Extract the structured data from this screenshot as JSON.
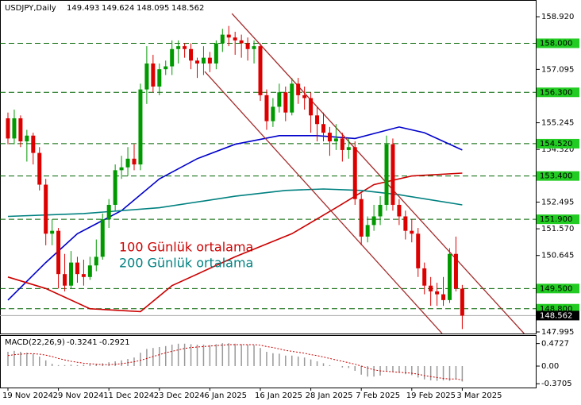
{
  "chart_data": {
    "type": "candlestick",
    "title": "USDJPY,Daily",
    "categories": [
      "19 Nov 2024",
      null,
      null,
      null,
      null,
      null,
      null,
      null,
      "29 Nov 2024",
      null,
      null,
      null,
      null,
      null,
      null,
      null,
      "11 Dec 2024",
      null,
      null,
      null,
      null,
      null,
      null,
      null,
      "23 Dec 2024",
      null,
      null,
      null,
      null,
      null,
      null,
      null,
      "6 Jan 2025",
      null,
      null,
      null,
      null,
      null,
      null,
      null,
      "16 Jan 2025",
      null,
      null,
      null,
      null,
      null,
      null,
      null,
      "28 Jan 2025",
      null,
      null,
      null,
      null,
      null,
      null,
      null,
      "7 Feb 2025",
      null,
      null,
      null,
      null,
      null,
      null,
      null,
      "19 Feb 2025",
      null,
      null,
      null,
      null,
      null,
      null,
      null,
      "3 Mar 2025"
    ],
    "candles": [
      [
        155.4,
        155.6,
        154.5,
        154.7
      ],
      [
        154.7,
        155.7,
        154.5,
        155.4
      ],
      [
        155.4,
        155.5,
        154.4,
        154.6
      ],
      [
        154.6,
        155.0,
        153.9,
        154.8
      ],
      [
        154.8,
        154.9,
        153.8,
        154.2
      ],
      [
        154.2,
        154.4,
        152.9,
        153.1
      ],
      [
        153.1,
        153.3,
        151.0,
        151.4
      ],
      [
        151.4,
        151.9,
        151.0,
        151.5
      ],
      [
        151.5,
        151.6,
        149.5,
        150.0
      ],
      [
        150.0,
        150.7,
        149.4,
        149.6
      ],
      [
        149.6,
        150.8,
        149.5,
        150.4
      ],
      [
        150.4,
        150.6,
        149.7,
        150.0
      ],
      [
        150.0,
        150.5,
        149.6,
        149.9
      ],
      [
        149.9,
        150.6,
        149.8,
        150.3
      ],
      [
        150.3,
        151.2,
        150.1,
        150.6
      ],
      [
        150.6,
        152.1,
        150.5,
        151.9
      ],
      [
        151.9,
        152.6,
        151.6,
        152.4
      ],
      [
        152.4,
        153.8,
        152.2,
        153.6
      ],
      [
        153.6,
        154.1,
        153.3,
        153.7
      ],
      [
        153.7,
        154.4,
        153.4,
        154.0
      ],
      [
        154.0,
        154.5,
        153.6,
        153.8
      ],
      [
        153.8,
        156.6,
        153.6,
        156.4
      ],
      [
        156.4,
        157.9,
        155.9,
        157.3
      ],
      [
        157.3,
        157.6,
        156.3,
        156.5
      ],
      [
        156.5,
        157.3,
        156.2,
        157.1
      ],
      [
        157.1,
        157.4,
        156.9,
        157.2
      ],
      [
        157.2,
        158.1,
        156.9,
        157.8
      ],
      [
        157.8,
        158.1,
        157.3,
        157.9
      ],
      [
        157.9,
        158.0,
        157.5,
        157.8
      ],
      [
        157.8,
        158.0,
        157.1,
        157.4
      ],
      [
        157.4,
        157.5,
        156.8,
        157.3
      ],
      [
        157.3,
        157.9,
        156.9,
        157.5
      ],
      [
        157.5,
        157.7,
        157.0,
        157.3
      ],
      [
        157.3,
        158.1,
        157.1,
        158.0
      ],
      [
        158.0,
        158.5,
        157.7,
        158.3
      ],
      [
        158.3,
        158.6,
        157.9,
        158.2
      ],
      [
        158.2,
        158.4,
        157.6,
        158.1
      ],
      [
        158.1,
        158.3,
        157.5,
        158.0
      ],
      [
        158.0,
        158.2,
        157.4,
        157.8
      ],
      [
        157.8,
        158.1,
        157.3,
        157.9
      ],
      [
        157.9,
        158.0,
        156.0,
        156.2
      ],
      [
        156.2,
        156.4,
        155.0,
        155.3
      ],
      [
        155.3,
        156.1,
        155.1,
        155.8
      ],
      [
        155.8,
        156.6,
        155.6,
        156.3
      ],
      [
        156.3,
        156.5,
        155.3,
        155.6
      ],
      [
        155.6,
        156.8,
        155.5,
        156.6
      ],
      [
        156.6,
        156.8,
        155.9,
        156.2
      ],
      [
        156.2,
        156.5,
        155.7,
        156.1
      ],
      [
        156.1,
        156.3,
        154.9,
        155.5
      ],
      [
        155.5,
        155.8,
        154.6,
        155.2
      ],
      [
        155.2,
        155.6,
        154.6,
        154.9
      ],
      [
        154.9,
        155.1,
        154.1,
        154.6
      ],
      [
        154.6,
        155.2,
        154.3,
        154.7
      ],
      [
        154.7,
        154.9,
        153.9,
        154.3
      ],
      [
        154.3,
        154.7,
        154.0,
        154.4
      ],
      [
        154.4,
        154.6,
        152.4,
        152.6
      ],
      [
        152.6,
        152.8,
        151.0,
        151.3
      ],
      [
        151.3,
        152.0,
        151.1,
        151.7
      ],
      [
        151.7,
        152.4,
        151.5,
        152.0
      ],
      [
        152.0,
        152.7,
        151.7,
        152.4
      ],
      [
        152.4,
        154.8,
        152.2,
        154.5
      ],
      [
        154.5,
        154.7,
        152.2,
        152.4
      ],
      [
        152.4,
        152.6,
        151.7,
        152.0
      ],
      [
        152.0,
        152.2,
        151.2,
        151.5
      ],
      [
        151.5,
        151.9,
        151.1,
        151.4
      ],
      [
        151.4,
        151.6,
        149.9,
        150.2
      ],
      [
        150.2,
        150.4,
        149.3,
        149.6
      ],
      [
        149.6,
        149.9,
        148.9,
        149.4
      ],
      [
        149.4,
        149.7,
        148.9,
        149.3
      ],
      [
        149.3,
        149.9,
        148.9,
        149.1
      ],
      [
        149.1,
        150.9,
        149.0,
        150.7
      ],
      [
        150.7,
        151.3,
        149.4,
        149.5
      ],
      [
        149.493,
        149.624,
        148.095,
        148.562
      ]
    ],
    "up_color": "#009900",
    "down_color": "#dd0000",
    "ylim": [
      147.94,
      159.5
    ],
    "yticks": [
      {
        "value": 158.92,
        "label": "158.920"
      },
      157.095,
      155.245,
      {
        "value": 154.32,
        "label": "154.320"
      },
      152.495,
      {
        "value": 151.57,
        "label": "151.570"
      },
      150.645,
      147.995
    ],
    "levels": [
      {
        "value": 158,
        "label": "158.000"
      },
      {
        "value": 156.3,
        "label": "156.300"
      },
      {
        "value": 154.52,
        "label": "154.520"
      },
      {
        "value": 153.4,
        "label": "153.400"
      },
      {
        "value": 151.9,
        "label": "151.900"
      },
      {
        "value": 149.5,
        "label": "149.500"
      },
      {
        "value": 148.8,
        "label": "148.800"
      }
    ],
    "level_color": "#006400",
    "level_box_color": "#22cc22",
    "last_price": 148.562,
    "series": [
      {
        "color": "#0000cc",
        "x": [
          0,
          6,
          11,
          18,
          24,
          30,
          36,
          43,
          49,
          55,
          62,
          66,
          72
        ],
        "values": [
          149.1,
          150.4,
          151.4,
          152.2,
          153.3,
          154.0,
          154.5,
          154.8,
          154.8,
          154.7,
          155.1,
          154.9,
          154.3
        ]
      },
      {
        "name": "100 Günlük ortalama",
        "color": "#cc0000",
        "x": [
          0,
          6,
          13,
          21,
          26,
          36,
          45,
          52,
          58,
          64,
          72
        ],
        "values": [
          149.9,
          149.5,
          148.8,
          148.7,
          149.6,
          150.6,
          151.4,
          152.3,
          153.1,
          153.4,
          153.5
        ]
      },
      {
        "name": "200 Günlük ortalama",
        "color": "#008080",
        "x": [
          0,
          12,
          24,
          36,
          44,
          50,
          56,
          62,
          72
        ],
        "values": [
          152.0,
          152.1,
          152.3,
          152.7,
          152.9,
          152.95,
          152.9,
          152.75,
          152.4
        ]
      }
    ],
    "channel": {
      "color": "#a52a2a",
      "lines": [
        {
          "x": [
            35.5,
            81.8
          ],
          "values": [
            159.03,
            147.94
          ]
        },
        {
          "x": [
            31.2,
            68.8
          ],
          "values": [
            157.02,
            147.94
          ]
        }
      ]
    },
    "macd": {
      "title": "MACD(22,26,9)",
      "ylim": [
        -0.45,
        0.65
      ],
      "yticks": [
        0.4727,
        {
          "value": 0,
          "label": "0.00"
        },
        -0.3705
      ],
      "values": [
        0.3,
        0.32,
        0.3,
        0.28,
        0.25,
        0.2,
        0.12,
        0.05,
        0.02,
        0.02,
        0.03,
        0.02,
        0.03,
        0.04,
        0.05,
        0.06,
        0.08,
        0.1,
        0.12,
        0.15,
        0.18,
        0.28,
        0.36,
        0.38,
        0.4,
        0.42,
        0.45,
        0.47,
        0.47,
        0.46,
        0.45,
        0.45,
        0.44,
        0.46,
        0.48,
        0.48,
        0.47,
        0.46,
        0.45,
        0.44,
        0.38,
        0.3,
        0.27,
        0.26,
        0.22,
        0.22,
        0.2,
        0.18,
        0.14,
        0.1,
        0.06,
        0.02,
        0.0,
        -0.03,
        -0.04,
        -0.1,
        -0.18,
        -0.22,
        -0.22,
        -0.2,
        -0.1,
        -0.12,
        -0.14,
        -0.17,
        -0.19,
        -0.24,
        -0.28,
        -0.3,
        -0.31,
        -0.3,
        -0.31,
        -0.27,
        -0.3241
      ],
      "signal": [
        0.22,
        0.24,
        0.25,
        0.26,
        0.26,
        0.25,
        0.23,
        0.2,
        0.16,
        0.13,
        0.1,
        0.08,
        0.06,
        0.05,
        0.04,
        0.03,
        0.03,
        0.04,
        0.05,
        0.07,
        0.09,
        0.12,
        0.16,
        0.2,
        0.24,
        0.28,
        0.31,
        0.34,
        0.37,
        0.39,
        0.4,
        0.41,
        0.42,
        0.43,
        0.44,
        0.45,
        0.45,
        0.45,
        0.45,
        0.45,
        0.44,
        0.41,
        0.39,
        0.36,
        0.33,
        0.31,
        0.29,
        0.27,
        0.24,
        0.22,
        0.19,
        0.16,
        0.13,
        0.1,
        0.07,
        0.04,
        0.0,
        -0.04,
        -0.08,
        -0.1,
        -0.11,
        -0.12,
        -0.13,
        -0.14,
        -0.15,
        -0.17,
        -0.2,
        -0.22,
        -0.24,
        -0.26,
        -0.27,
        -0.27,
        -0.2921
      ],
      "hist_color": "#999999",
      "signal_color": "#cc0000"
    }
  }
}
